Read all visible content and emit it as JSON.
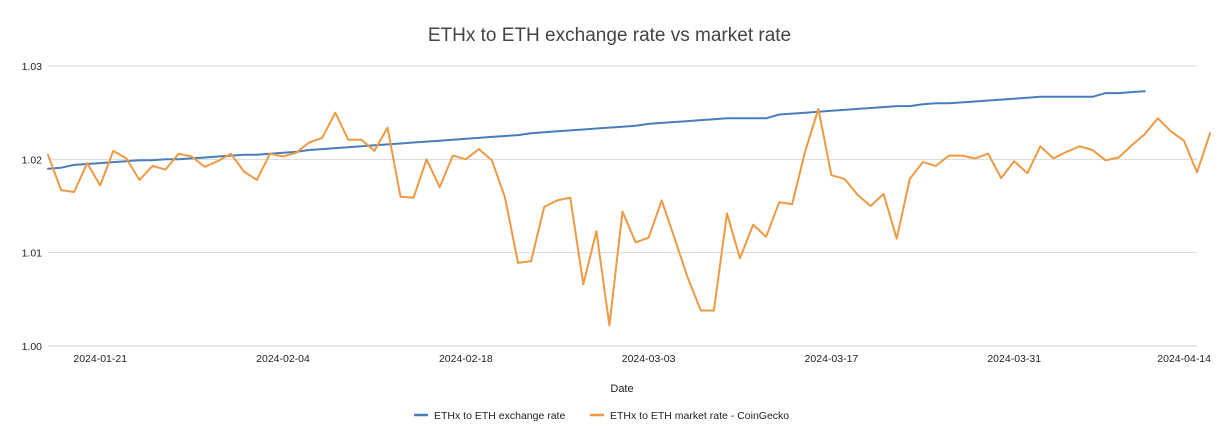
{
  "chart_data": {
    "type": "line",
    "title": "ETHx to ETH exchange rate vs market rate",
    "xlabel": "Date",
    "ylabel": "",
    "ylim": [
      1.0,
      1.03
    ],
    "y_ticks": [
      1.0,
      1.01,
      1.02,
      1.03
    ],
    "y_tick_labels": [
      "1.00",
      "1.01",
      "1.02",
      "1.03"
    ],
    "x_tick_labels": [
      "2024-01-21",
      "2024-02-04",
      "2024-02-18",
      "2024-03-03",
      "2024-03-17",
      "2024-03-31",
      "2024-04-14"
    ],
    "x_tick_day_index": [
      4,
      18,
      32,
      46,
      60,
      74,
      88
    ],
    "day_range": [
      0,
      88
    ],
    "grid": true,
    "legend_position": "bottom",
    "series": [
      {
        "name": "ETHx to ETH exchange rate",
        "color": "#4a7ebb",
        "values": [
          1.019,
          1.0191,
          1.0194,
          1.0195,
          1.0196,
          1.0197,
          1.0198,
          1.0199,
          1.0199,
          1.02,
          1.02,
          1.0201,
          1.0202,
          1.0203,
          1.0204,
          1.0205,
          1.0205,
          1.0206,
          1.0207,
          1.0208,
          1.021,
          1.0211,
          1.0212,
          1.0213,
          1.0214,
          1.0215,
          1.0216,
          1.0217,
          1.0218,
          1.0219,
          1.022,
          1.0221,
          1.0222,
          1.0223,
          1.0224,
          1.0225,
          1.0226,
          1.0228,
          1.0229,
          1.023,
          1.0231,
          1.0232,
          1.0233,
          1.0234,
          1.0235,
          1.0236,
          1.0238,
          1.0239,
          1.024,
          1.0241,
          1.0242,
          1.0243,
          1.0244,
          1.0244,
          1.0244,
          1.0244,
          1.0248,
          1.0249,
          1.025,
          1.0251,
          1.0252,
          1.0253,
          1.0254,
          1.0255,
          1.0256,
          1.0257,
          1.0257,
          1.0259,
          1.026,
          1.026,
          1.0261,
          1.0262,
          1.0263,
          1.0264,
          1.0265,
          1.0266,
          1.0267,
          1.0267,
          1.0267,
          1.0267,
          1.0267,
          1.0271,
          1.0271,
          1.0272,
          1.0273
        ]
      },
      {
        "name": "ETHx to ETH market rate - CoinGecko",
        "color": "#ed9a43",
        "values": [
          1.0205,
          1.0167,
          1.0165,
          1.0196,
          1.0172,
          1.0209,
          1.0201,
          1.0178,
          1.0193,
          1.0189,
          1.0206,
          1.0203,
          1.0192,
          1.0198,
          1.0206,
          1.0187,
          1.0178,
          1.0206,
          1.0203,
          1.0207,
          1.0218,
          1.0223,
          1.025,
          1.0221,
          1.0221,
          1.0209,
          1.0234,
          1.016,
          1.0159,
          1.02,
          1.017,
          1.0204,
          1.02,
          1.0211,
          1.0199,
          1.0159,
          1.0089,
          1.0091,
          1.0149,
          1.0156,
          1.0159,
          1.0066,
          1.0123,
          1.0022,
          1.0144,
          1.0111,
          1.0116,
          1.0156,
          1.0115,
          1.0073,
          1.0038,
          1.0038,
          1.0142,
          1.0094,
          1.013,
          1.0117,
          1.0154,
          1.0152,
          1.0209,
          1.0254,
          1.0183,
          1.0179,
          1.0162,
          1.015,
          1.0163,
          1.0115,
          1.0179,
          1.0197,
          1.0193,
          1.0204,
          1.0204,
          1.0201,
          1.0206,
          1.018,
          1.0198,
          1.0185,
          1.0214,
          1.0201,
          1.0208,
          1.0214,
          1.021,
          1.0199,
          1.0202,
          1.0215,
          1.0227,
          1.0244,
          1.023,
          1.022,
          1.0186,
          1.0228
        ]
      }
    ]
  }
}
